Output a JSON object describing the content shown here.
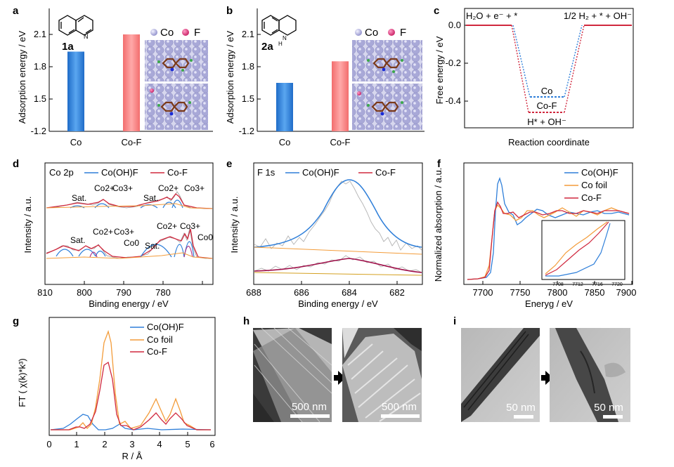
{
  "colors": {
    "blue": "#2f7fd9",
    "red": "#d0283e",
    "orange": "#f39c3a",
    "salmon": "#f48787",
    "gray": "#a8a8a8",
    "co_atom": "#a9a9d8",
    "f_atom": "#d63b7a",
    "dark": "#222222"
  },
  "panel_a": {
    "letter": "a",
    "ylabel": "Adsorption energy / eV",
    "compound": "1a",
    "legend": {
      "co": "Co",
      "f": "F"
    },
    "chart_data": {
      "type": "bar",
      "categories": [
        "Co",
        "Co-F"
      ],
      "values": [
        1.94,
        2.1
      ],
      "ylim": [
        1.2,
        2.25
      ],
      "ticks": [
        "2.1",
        "1.8",
        "1.5",
        "-1.2"
      ]
    }
  },
  "panel_b": {
    "letter": "b",
    "ylabel": "Adsorption energy / eV",
    "compound": "2a",
    "nh": "H\nN",
    "legend": {
      "co": "Co",
      "f": "F"
    },
    "chart_data": {
      "type": "bar",
      "categories": [
        "Co",
        "Co-F"
      ],
      "values": [
        1.65,
        1.85
      ],
      "ylim": [
        1.2,
        2.25
      ],
      "ticks": [
        "2.1",
        "1.8",
        "1.5",
        "-1.2"
      ]
    }
  },
  "panel_c": {
    "letter": "c",
    "ylabel": "Free energy / eV",
    "xlabel": "Reaction coordinate",
    "left_label": "H₂O + e⁻ + *",
    "right_label": "1/2 H₂ + * + OH⁻",
    "bottom_label": "H* + OH⁻",
    "chart_data": {
      "type": "line",
      "ylim": [
        -0.5,
        0.05
      ],
      "ticks": [
        "0.0",
        "-0.2",
        "-0.4"
      ],
      "series": [
        {
          "name": "Co",
          "values": [
            0,
            -0.38,
            0
          ]
        },
        {
          "name": "Co-F",
          "values": [
            0,
            -0.46,
            0
          ]
        }
      ]
    }
  },
  "panel_d": {
    "letter": "d",
    "title": "Co 2p",
    "ylabel": "Intensity / a.u.",
    "xlabel": "Binding energy / eV",
    "legend": [
      "Co(OH)F",
      "Co-F"
    ],
    "chart_data": {
      "type": "line",
      "xlim": [
        810,
        775
      ],
      "ticks": [
        "810",
        "800",
        "790",
        "780"
      ],
      "annotations": [
        "Sat.",
        "Co2+",
        "Co3+",
        "Sat.",
        "Co2+",
        "Co3+",
        "Sat.",
        "Co2+",
        "Co3+",
        "Co0",
        "Sat.",
        "Co2+",
        "Co3+",
        "Co0"
      ]
    }
  },
  "panel_e": {
    "letter": "e",
    "title": "F 1s",
    "ylabel": "Intensity / a.u.",
    "xlabel": "Binding energy / eV",
    "legend": [
      "Co(OH)F",
      "Co-F"
    ],
    "chart_data": {
      "type": "line",
      "xlim": [
        688,
        681
      ],
      "ticks": [
        "688",
        "686",
        "684",
        "682"
      ],
      "peak": 684.0
    }
  },
  "panel_f": {
    "letter": "f",
    "ylabel": "Normalized absorption / a.u.",
    "xlabel": "Eneryg / eV",
    "legend": [
      "Co(OH)F",
      "Co foil",
      "Co-F"
    ],
    "chart_data": {
      "type": "line",
      "xlim": [
        7675,
        7900
      ],
      "ticks": [
        "7700",
        "7750",
        "7800",
        "7850",
        "7900"
      ],
      "inset_ticks": [
        "7708",
        "7712",
        "7716",
        "7720"
      ]
    }
  },
  "panel_g": {
    "letter": "g",
    "ylabel": "FT ( χ(k)*k³)",
    "xlabel": "R / Å",
    "legend": [
      "Co(OH)F",
      "Co foil",
      "Co-F"
    ],
    "chart_data": {
      "type": "line",
      "xlim": [
        0,
        6
      ],
      "ticks": [
        "0",
        "1",
        "2",
        "3",
        "4",
        "5",
        "6"
      ],
      "peaks": {
        "Co(OH)F": [
          1.6
        ],
        "Co foil": [
          2.15,
          3.9,
          4.55
        ],
        "Co-F": [
          2.15,
          3.9,
          4.55
        ]
      }
    }
  },
  "panel_h": {
    "letter": "h",
    "scale_left": "500 nm",
    "scale_right": "500 nm"
  },
  "panel_i": {
    "letter": "i",
    "scale_left": "50 nm",
    "scale_right": "50 nm"
  }
}
